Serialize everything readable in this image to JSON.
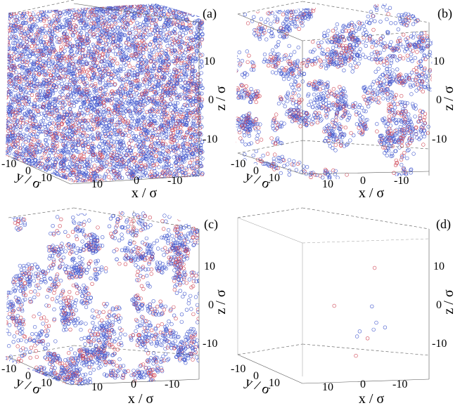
{
  "figure": {
    "particle_colors": {
      "type_A": "#4a5fd0",
      "type_B": "#d04a5a"
    },
    "panels": [
      {
        "label": "(a)",
        "density": "full"
      },
      {
        "label": "(b)",
        "density": "clustered"
      },
      {
        "label": "(c)",
        "density": "clustered"
      },
      {
        "label": "(d)",
        "density": "sparse"
      }
    ]
  },
  "chart_data": [
    {
      "type": "scatter",
      "subtype": "3d-particle-snapshot",
      "panel": "(a)",
      "title": "",
      "xlabel": "x / σ",
      "ylabel": "y / σ",
      "zlabel": "z / σ",
      "x_ticks": [
        "10",
        "0",
        "-10"
      ],
      "y_ticks": [
        "-10",
        "0",
        "10"
      ],
      "z_ticks": [
        "10",
        "0",
        "-10"
      ],
      "xlim": [
        -18,
        18
      ],
      "ylim": [
        -18,
        18
      ],
      "zlim": [
        -18,
        18
      ],
      "description_visible": "box densely filled with particles"
    },
    {
      "type": "scatter",
      "subtype": "3d-particle-snapshot",
      "panel": "(b)",
      "title": "",
      "xlabel": "x / σ",
      "ylabel": "y / σ",
      "zlabel": "z / σ",
      "x_ticks": [
        "10",
        "0",
        "-10"
      ],
      "y_ticks": [
        "-10",
        "0",
        "10"
      ],
      "z_ticks": [
        "10",
        "0",
        "-10"
      ],
      "xlim": [
        -18,
        18
      ],
      "ylim": [
        -18,
        18
      ],
      "zlim": [
        -18,
        18
      ]
    },
    {
      "type": "scatter",
      "subtype": "3d-particle-snapshot",
      "panel": "(c)",
      "title": "",
      "xlabel": "x / σ",
      "ylabel": "y / σ",
      "zlabel": "z / σ",
      "x_ticks": [
        "10",
        "0",
        "-10"
      ],
      "y_ticks": [
        "-10",
        "0",
        "10"
      ],
      "z_ticks": [
        "10",
        "0",
        "-10"
      ],
      "xlim": [
        -18,
        18
      ],
      "ylim": [
        -18,
        18
      ],
      "zlim": [
        -18,
        18
      ]
    },
    {
      "type": "scatter",
      "subtype": "3d-particle-snapshot",
      "panel": "(d)",
      "title": "",
      "xlabel": "x / σ",
      "ylabel": "y / σ",
      "zlabel": "z / σ",
      "x_ticks": [
        "10",
        "0",
        "-10"
      ],
      "y_ticks": [
        "-10",
        "0",
        "10"
      ],
      "z_ticks": [
        "10",
        "0",
        "-10"
      ],
      "xlim": [
        -18,
        18
      ],
      "ylim": [
        -18,
        18
      ],
      "zlim": [
        -18,
        18
      ],
      "points": [
        {
          "x": -3,
          "y": 2,
          "z": 11.5,
          "type": "B"
        },
        {
          "x": 8,
          "y": 4,
          "z": 1.5,
          "type": "B"
        },
        {
          "x": -2,
          "y": 1,
          "z": 1.0,
          "type": "A"
        },
        {
          "x": -3,
          "y": 0,
          "z": -3.5,
          "type": "A"
        },
        {
          "x": -2,
          "y": -1,
          "z": -5.5,
          "type": "A"
        },
        {
          "x": -5,
          "y": -2,
          "z": -5.0,
          "type": "A"
        },
        {
          "x": 1,
          "y": 3,
          "z": -5.5,
          "type": "A"
        },
        {
          "x": 2,
          "y": 2,
          "z": -7.0,
          "type": "A"
        },
        {
          "x": -1,
          "y": 2,
          "z": -7.5,
          "type": "B"
        },
        {
          "x": 4,
          "y": -5,
          "z": -13.0,
          "type": "B"
        }
      ]
    }
  ]
}
